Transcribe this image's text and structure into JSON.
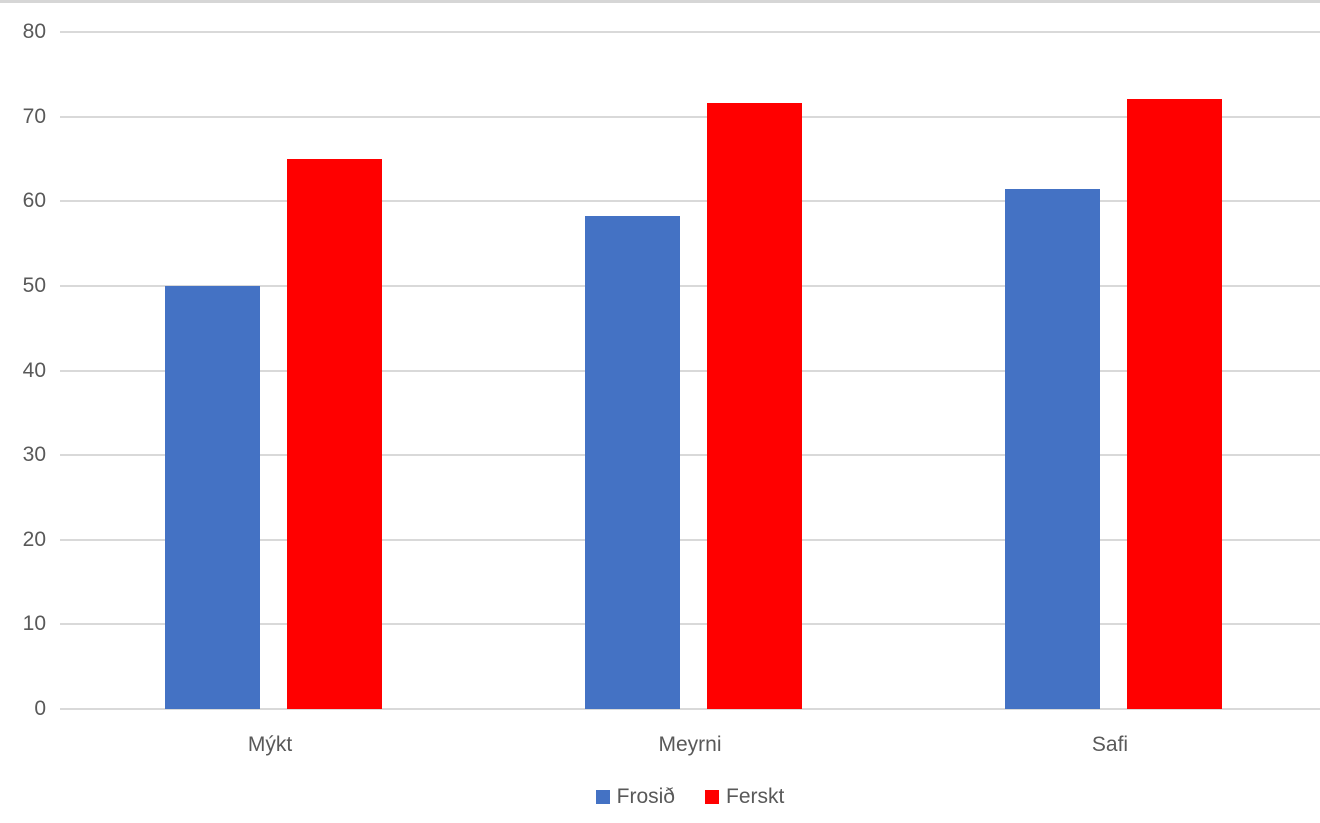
{
  "chart_data": {
    "type": "bar",
    "title": "",
    "xlabel": "",
    "ylabel": "",
    "categories": [
      "Mýkt",
      "Meyrni",
      "Safi"
    ],
    "series": [
      {
        "name": "Frosið",
        "color": "#4472C4",
        "values": [
          50,
          58.3,
          61.5
        ]
      },
      {
        "name": "Ferskt",
        "color": "#FF0000",
        "values": [
          65,
          71.6,
          72.1
        ]
      }
    ],
    "ylim": [
      0,
      80
    ],
    "yticks": [
      0,
      10,
      20,
      30,
      40,
      50,
      60,
      70,
      80
    ],
    "grid": true,
    "legend_position": "bottom"
  },
  "colors": {
    "background": "#FFFFFF",
    "gridline": "#D9D9D9",
    "axis_text": "#595959",
    "top_strip": "#D6D6D6"
  }
}
